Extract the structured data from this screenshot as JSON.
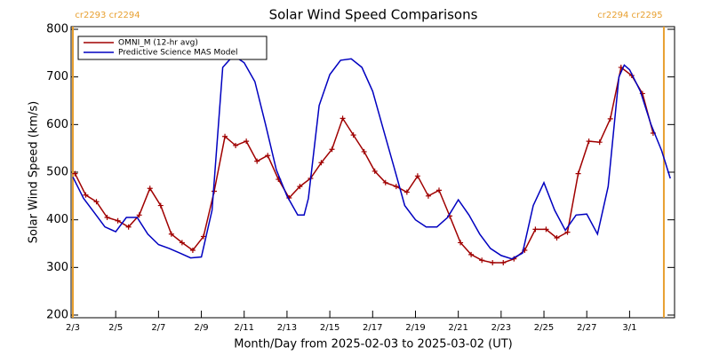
{
  "chart_data": {
    "type": "line",
    "title": "Solar Wind Speed Comparisons",
    "xlabel": "Month/Day from 2025-02-03 to 2025-03-02 (UT)",
    "ylabel": "Solar Wind Speed (km/s)",
    "xlim": [
      0,
      28.1
    ],
    "ylim": [
      200,
      800
    ],
    "yticks": [
      200,
      300,
      400,
      500,
      600,
      700,
      800
    ],
    "xticks": [
      {
        "value": 0,
        "label": "2/3"
      },
      {
        "value": 2,
        "label": "2/5"
      },
      {
        "value": 4,
        "label": "2/7"
      },
      {
        "value": 6,
        "label": "2/9"
      },
      {
        "value": 8,
        "label": "2/11"
      },
      {
        "value": 10,
        "label": "2/13"
      },
      {
        "value": 12,
        "label": "2/15"
      },
      {
        "value": 14,
        "label": "2/17"
      },
      {
        "value": 16,
        "label": "2/19"
      },
      {
        "value": 18,
        "label": "2/21"
      },
      {
        "value": 20,
        "label": "2/23"
      },
      {
        "value": 22,
        "label": "2/25"
      },
      {
        "value": 24,
        "label": "2/27"
      },
      {
        "value": 26,
        "label": "3/1"
      }
    ],
    "legend": "upper left",
    "vlines": [
      {
        "value": 0,
        "label": "cr2293 cr2294",
        "color": "#e8a030"
      },
      {
        "value": 27.6,
        "label": "cr2294 cr2295",
        "color": "#e8a030"
      }
    ],
    "series": [
      {
        "name": "OMNI_M (12-hr avg)",
        "color": "#a00000",
        "marker": "plus",
        "x": [
          0.1,
          0.6,
          1.1,
          1.6,
          2.1,
          2.6,
          3.1,
          3.6,
          4.1,
          4.6,
          5.1,
          5.6,
          6.1,
          6.6,
          7.1,
          7.6,
          8.1,
          8.6,
          9.1,
          9.6,
          10.1,
          10.6,
          11.1,
          11.6,
          12.1,
          12.6,
          13.1,
          13.6,
          14.1,
          14.6,
          15.1,
          15.6,
          16.1,
          16.6,
          17.1,
          17.6,
          18.1,
          18.6,
          19.1,
          19.6,
          20.1,
          20.6,
          21.1,
          21.6,
          22.1,
          22.6,
          23.1,
          23.6,
          24.1,
          24.6,
          25.1,
          25.6,
          26.1,
          26.6,
          27.1
        ],
        "values": [
          497,
          452,
          438,
          405,
          398,
          385,
          410,
          466,
          430,
          370,
          352,
          336,
          365,
          460,
          575,
          556,
          565,
          523,
          535,
          485,
          446,
          470,
          487,
          520,
          548,
          613,
          578,
          543,
          502,
          478,
          470,
          458,
          492,
          450,
          462,
          408,
          352,
          327,
          315,
          310,
          310,
          318,
          336,
          380,
          380,
          362,
          374,
          497,
          565,
          563,
          612,
          720,
          703,
          665,
          582
        ]
      },
      {
        "name": "Predictive Science MAS Model",
        "color": "#0000c0",
        "x": [
          0,
          0.5,
          1,
          1.5,
          2,
          2.5,
          3,
          3.5,
          4,
          4.5,
          5,
          5.5,
          6,
          6.5,
          7,
          7.5,
          8,
          8.5,
          9,
          9.5,
          10,
          10.5,
          10.8,
          11,
          11.5,
          12,
          12.5,
          13,
          13.5,
          14,
          14.5,
          15,
          15.5,
          16,
          16.5,
          17,
          17.5,
          18,
          18.5,
          19,
          19.5,
          20,
          20.5,
          21,
          21.5,
          22,
          22.5,
          23,
          23.5,
          24,
          24.5,
          25,
          25.5,
          25.75,
          26,
          26.5,
          27,
          27.5,
          27.9
        ],
        "values": [
          490,
          445,
          415,
          385,
          375,
          405,
          405,
          370,
          348,
          340,
          330,
          320,
          322,
          420,
          720,
          745,
          730,
          690,
          600,
          505,
          450,
          410,
          410,
          445,
          640,
          705,
          735,
          738,
          720,
          670,
          590,
          510,
          430,
          400,
          385,
          385,
          405,
          442,
          410,
          370,
          340,
          325,
          318,
          330,
          430,
          478,
          420,
          378,
          410,
          412,
          370,
          470,
          700,
          725,
          715,
          670,
          600,
          545,
          487
        ]
      }
    ]
  }
}
